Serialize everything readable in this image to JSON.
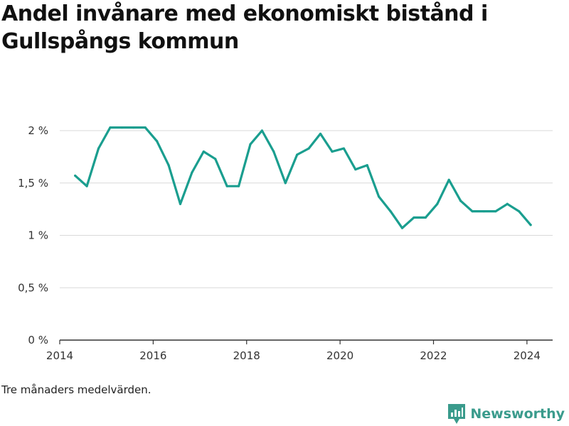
{
  "title": "Andel invånare med ekonomiskt bistånd i Gullspångs kommun",
  "footnote": "Tre månaders medelvärden.",
  "brand": {
    "name": "Newsworthy",
    "icon": "bar-chart-badge-icon",
    "color": "#3a9b8c"
  },
  "colors": {
    "line": "#1a9e8f",
    "grid": "#d9d9d9",
    "axis": "#333333"
  },
  "chart_data": {
    "type": "line",
    "title": "Andel invånare med ekonomiskt bistånd i Gullspångs kommun",
    "xlabel": "",
    "ylabel": "",
    "xlim": [
      2014.0,
      2024.55
    ],
    "ylim": [
      0,
      2.0
    ],
    "x_ticks": [
      {
        "value": 2014,
        "label": "2014"
      },
      {
        "value": 2016,
        "label": "2016"
      },
      {
        "value": 2018,
        "label": "2018"
      },
      {
        "value": 2020,
        "label": "2020"
      },
      {
        "value": 2022,
        "label": "2022"
      },
      {
        "value": 2024,
        "label": "2024"
      }
    ],
    "y_ticks": [
      {
        "value": 0,
        "label": "0 %"
      },
      {
        "value": 0.5,
        "label": "0,5 %"
      },
      {
        "value": 1.0,
        "label": "1 %"
      },
      {
        "value": 1.5,
        "label": "1,5 %"
      },
      {
        "value": 2.0,
        "label": "2 %"
      }
    ],
    "grid": true,
    "legend": "none",
    "series": [
      {
        "x": [
          2014.33,
          2014.58,
          2014.83,
          2015.08,
          2015.33,
          2015.58,
          2015.83,
          2016.08,
          2016.33,
          2016.58,
          2016.83,
          2017.08,
          2017.33,
          2017.58,
          2017.83,
          2018.08,
          2018.33,
          2018.58,
          2018.83,
          2019.08,
          2019.33,
          2019.58,
          2019.83,
          2020.08,
          2020.33,
          2020.58,
          2020.83,
          2021.08,
          2021.33,
          2021.58,
          2021.83,
          2022.08,
          2022.33,
          2022.58,
          2022.83,
          2023.08,
          2023.33,
          2023.58,
          2023.83,
          2024.08
        ],
        "values": [
          1.57,
          1.47,
          1.83,
          2.03,
          2.03,
          2.03,
          2.03,
          1.9,
          1.67,
          1.3,
          1.6,
          1.8,
          1.73,
          1.47,
          1.47,
          1.87,
          2.0,
          1.8,
          1.5,
          1.77,
          1.83,
          1.97,
          1.8,
          1.83,
          1.63,
          1.67,
          1.37,
          1.23,
          1.07,
          1.17,
          1.17,
          1.3,
          1.53,
          1.33,
          1.23,
          1.23,
          1.23,
          1.3,
          1.23,
          1.1
        ]
      }
    ]
  }
}
